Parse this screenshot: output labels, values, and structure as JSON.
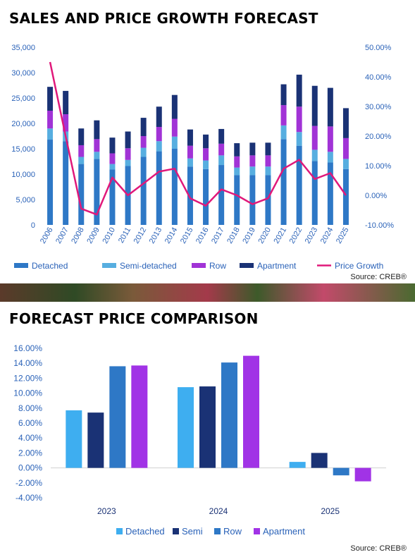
{
  "chart_data": [
    {
      "type": "bar",
      "title": "SALES AND PRICE GROWTH FORECAST",
      "source": "Source: CREB®",
      "categories": [
        "2006",
        "2007",
        "2008",
        "2009",
        "2010",
        "2011",
        "2012",
        "2013",
        "2014",
        "2015",
        "2016",
        "2017",
        "2018",
        "2019",
        "2020",
        "2021",
        "2022",
        "2023",
        "2024",
        "2025"
      ],
      "y_left": {
        "min": 0,
        "max": 35000,
        "ticks": [
          "0",
          "5,000",
          "10,000",
          "15,000",
          "20,000",
          "25,000",
          "30,000",
          "35,000"
        ]
      },
      "y_right": {
        "min": -0.1,
        "max": 0.5,
        "ticks": [
          "-10.00%",
          "0.00%",
          "10.00%",
          "20.00%",
          "30.00%",
          "40.00%",
          "50.00%"
        ]
      },
      "stacked": true,
      "series": [
        {
          "name": "Detached",
          "color": "#2e78c6",
          "values": [
            16800,
            16500,
            12000,
            13000,
            10900,
            11600,
            13400,
            14500,
            15000,
            11500,
            11000,
            11800,
            9800,
            9800,
            9800,
            16900,
            15600,
            12600,
            12300,
            11000
          ]
        },
        {
          "name": "Semi-detached",
          "color": "#57aee0",
          "values": [
            2200,
            1900,
            1400,
            1400,
            1100,
            1200,
            1800,
            2000,
            2400,
            1600,
            1700,
            1900,
            1500,
            1700,
            1700,
            2700,
            2700,
            2200,
            2100,
            2000
          ]
        },
        {
          "name": "Row",
          "color": "#a133d6",
          "values": [
            3500,
            3400,
            2300,
            2500,
            2100,
            2300,
            2300,
            2800,
            3500,
            2500,
            2400,
            2300,
            2200,
            2200,
            2200,
            4000,
            5000,
            4700,
            5000,
            4100
          ]
        },
        {
          "name": "Apartment",
          "color": "#1a3275",
          "values": [
            4700,
            4600,
            3300,
            3700,
            3100,
            3300,
            3600,
            4000,
            4700,
            3200,
            2700,
            2900,
            2600,
            2500,
            2500,
            4100,
            6300,
            7900,
            7600,
            5900
          ]
        }
      ],
      "line_series": {
        "name": "Price Growth",
        "color": "#e0187a",
        "values": [
          0.45,
          0.2,
          -0.045,
          -0.065,
          0.06,
          0.0,
          0.04,
          0.08,
          0.09,
          -0.01,
          -0.035,
          0.02,
          0.0,
          -0.03,
          -0.01,
          0.09,
          0.12,
          0.055,
          0.075,
          0.0
        ]
      }
    },
    {
      "type": "bar",
      "title": "FORECAST PRICE COMPARISON",
      "source": "Source: CREB®",
      "categories": [
        "2023",
        "2024",
        "2025"
      ],
      "y": {
        "min": -0.04,
        "max": 0.16,
        "ticks": [
          "-4.00%",
          "-2.00%",
          "0.00%",
          "2.00%",
          "4.00%",
          "6.00%",
          "8.00%",
          "10.00%",
          "12.00%",
          "14.00%",
          "16.00%"
        ]
      },
      "series": [
        {
          "name": "Detached",
          "color": "#3eaef0",
          "values": [
            0.077,
            0.108,
            0.008
          ]
        },
        {
          "name": "Semi",
          "color": "#1a3275",
          "values": [
            0.074,
            0.109,
            0.02
          ]
        },
        {
          "name": "Row",
          "color": "#2e78c6",
          "values": [
            0.136,
            0.141,
            -0.01
          ]
        },
        {
          "name": "Apartment",
          "color": "#a133e6",
          "values": [
            0.137,
            0.15,
            -0.018
          ]
        }
      ]
    }
  ]
}
